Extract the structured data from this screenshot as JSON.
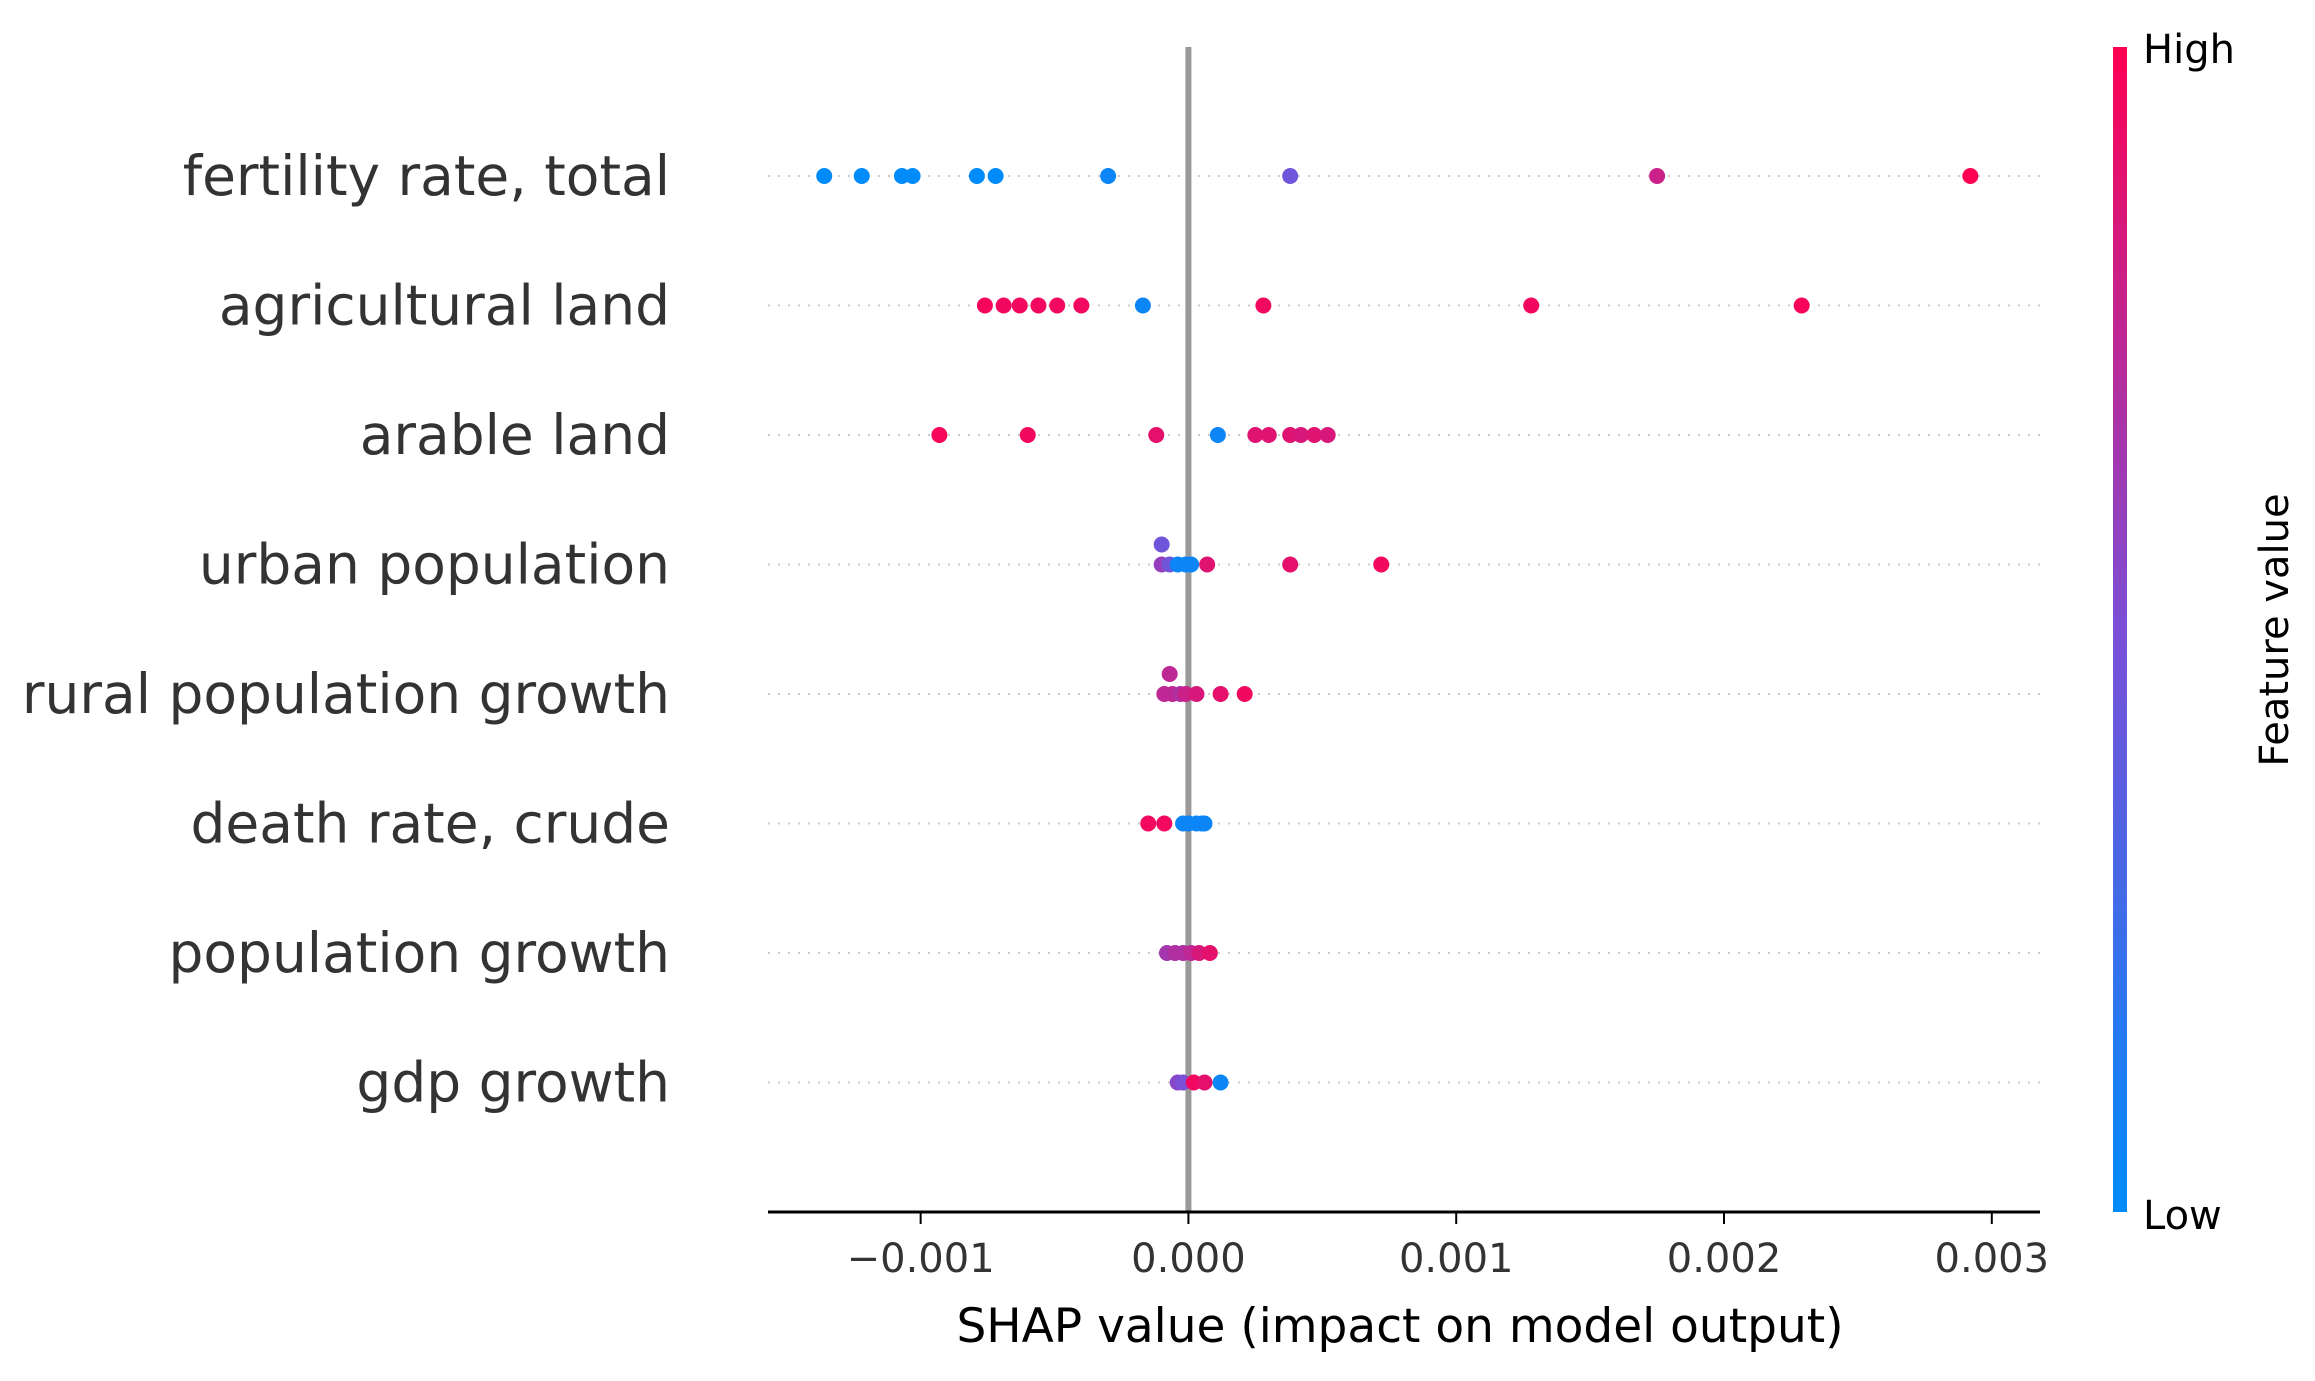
{
  "chart_data": {
    "type": "scatter",
    "subtype": "shap-beeswarm",
    "title": "",
    "xlabel": "SHAP value (impact on model output)",
    "ylabel": "",
    "xlim": [
      -0.00157,
      0.00318
    ],
    "xticks": [
      {
        "value": -0.001,
        "label": "−0.001"
      },
      {
        "value": 0.0,
        "label": "0.000"
      },
      {
        "value": 0.001,
        "label": "0.001"
      },
      {
        "value": 0.002,
        "label": "0.002"
      },
      {
        "value": 0.003,
        "label": "0.003"
      }
    ],
    "grid": false,
    "zero_line": true,
    "colorbar": {
      "title": "Feature value",
      "high_label": "High",
      "low_label": "Low",
      "low_color": "#008bfb",
      "high_color": "#ff0052"
    },
    "features": [
      {
        "name": "fertility rate, total",
        "points": [
          {
            "x": -0.00136,
            "v": 0.0
          },
          {
            "x": -0.00122,
            "v": 0.0
          },
          {
            "x": -0.00107,
            "v": 0.0
          },
          {
            "x": -0.00103,
            "v": 0.0
          },
          {
            "x": -0.00079,
            "v": 0.0
          },
          {
            "x": -0.00072,
            "v": 0.0
          },
          {
            "x": -0.0003,
            "v": 0.05
          },
          {
            "x": 0.00038,
            "v": 0.45
          },
          {
            "x": 0.00175,
            "v": 0.8
          },
          {
            "x": 0.00292,
            "v": 1.0
          }
        ]
      },
      {
        "name": "agricultural land",
        "points": [
          {
            "x": -0.00076,
            "v": 0.97
          },
          {
            "x": -0.00069,
            "v": 0.95
          },
          {
            "x": -0.00063,
            "v": 0.95
          },
          {
            "x": -0.00056,
            "v": 0.95
          },
          {
            "x": -0.00049,
            "v": 0.95
          },
          {
            "x": -0.0004,
            "v": 0.95
          },
          {
            "x": -0.00017,
            "v": 0.05
          },
          {
            "x": 0.00028,
            "v": 0.95
          },
          {
            "x": 0.00128,
            "v": 0.95
          },
          {
            "x": 0.00229,
            "v": 0.97
          }
        ]
      },
      {
        "name": "arable land",
        "points": [
          {
            "x": -0.00093,
            "v": 0.97
          },
          {
            "x": -0.0006,
            "v": 0.95
          },
          {
            "x": -0.00012,
            "v": 0.9
          },
          {
            "x": 0.00011,
            "v": 0.05
          },
          {
            "x": 0.00025,
            "v": 0.88
          },
          {
            "x": 0.0003,
            "v": 0.88
          },
          {
            "x": 0.00038,
            "v": 0.88
          },
          {
            "x": 0.00042,
            "v": 0.85
          },
          {
            "x": 0.00047,
            "v": 0.88
          },
          {
            "x": 0.00052,
            "v": 0.85
          }
        ]
      },
      {
        "name": "urban population",
        "points": [
          {
            "x": -0.0001,
            "v": 0.45,
            "dy": -1
          },
          {
            "x": -0.0001,
            "v": 0.6
          },
          {
            "x": -7e-05,
            "v": 0.45
          },
          {
            "x": -4e-05,
            "v": 0.05
          },
          {
            "x": -1e-05,
            "v": 0.05
          },
          {
            "x": 1e-05,
            "v": 0.05
          },
          {
            "x": 7e-05,
            "v": 0.88
          },
          {
            "x": 0.00038,
            "v": 0.9
          },
          {
            "x": 0.00072,
            "v": 0.95
          }
        ]
      },
      {
        "name": "rural population growth",
        "points": [
          {
            "x": -7e-05,
            "v": 0.75,
            "dy": -1
          },
          {
            "x": -9e-05,
            "v": 0.75
          },
          {
            "x": -6e-05,
            "v": 0.75
          },
          {
            "x": -3e-05,
            "v": 0.7
          },
          {
            "x": -1e-05,
            "v": 0.8
          },
          {
            "x": 3e-05,
            "v": 0.85
          },
          {
            "x": 0.00012,
            "v": 0.9
          },
          {
            "x": 0.00021,
            "v": 0.95
          }
        ]
      },
      {
        "name": "death rate, crude",
        "points": [
          {
            "x": -0.00015,
            "v": 0.95
          },
          {
            "x": -9e-05,
            "v": 0.95
          },
          {
            "x": -2e-05,
            "v": 0.05
          },
          {
            "x": 0.0,
            "v": 0.05
          },
          {
            "x": 3e-05,
            "v": 0.05
          },
          {
            "x": 5e-05,
            "v": 0.05
          },
          {
            "x": 6e-05,
            "v": 0.05
          }
        ]
      },
      {
        "name": "population growth",
        "points": [
          {
            "x": -8e-05,
            "v": 0.65
          },
          {
            "x": -5e-05,
            "v": 0.7
          },
          {
            "x": -2e-05,
            "v": 0.7
          },
          {
            "x": 1e-05,
            "v": 0.75
          },
          {
            "x": 4e-05,
            "v": 0.85
          },
          {
            "x": 8e-05,
            "v": 0.9
          }
        ]
      },
      {
        "name": "gdp growth",
        "points": [
          {
            "x": -4e-05,
            "v": 0.55
          },
          {
            "x": -2e-05,
            "v": 0.5
          },
          {
            "x": 2e-05,
            "v": 0.95
          },
          {
            "x": 6e-05,
            "v": 0.9
          },
          {
            "x": 0.00012,
            "v": 0.05
          }
        ]
      }
    ]
  }
}
